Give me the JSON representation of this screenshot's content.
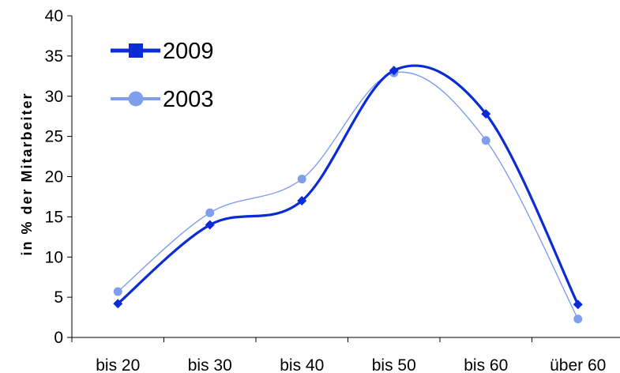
{
  "chart_data": {
    "type": "line",
    "title": "",
    "xlabel": "",
    "ylabel": "in % der Mitarbeiter",
    "categories": [
      "bis 20",
      "bis 30",
      "bis 40",
      "bis 50",
      "bis 60",
      "über 60"
    ],
    "ylim": [
      0,
      40
    ],
    "yticks": [
      0,
      5,
      10,
      15,
      20,
      25,
      30,
      35,
      40
    ],
    "grid": false,
    "legend_position": "top-left",
    "smooth": true,
    "series": [
      {
        "name": "2009",
        "values": [
          4.2,
          14.0,
          17.0,
          33.2,
          27.8,
          4.1
        ],
        "color": "#0a2bd6",
        "marker": "diamond",
        "legend_marker": "square"
      },
      {
        "name": "2003",
        "values": [
          5.7,
          15.5,
          19.7,
          32.9,
          24.5,
          2.3
        ],
        "color": "#7f9fee",
        "marker": "circle",
        "legend_marker": "circle"
      }
    ]
  }
}
